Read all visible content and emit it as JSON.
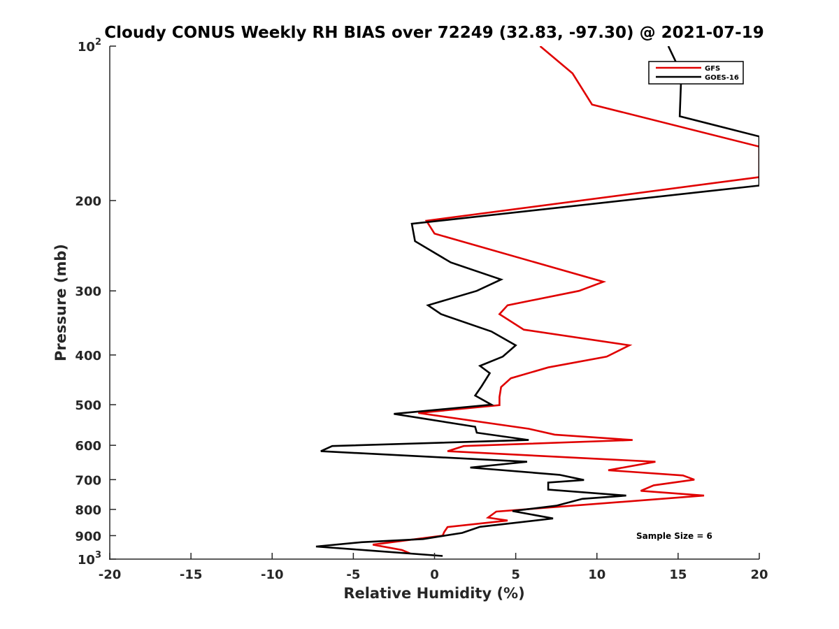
{
  "chart_data": {
    "type": "line",
    "title": "Cloudy CONUS Weekly RH BIAS over 72249 (32.83, -97.30) @ 2021-07-19",
    "xlabel": "Relative Humidity (%)",
    "ylabel": "Pressure (mb)",
    "xlim": [
      -20,
      20
    ],
    "ylim": [
      100,
      1000
    ],
    "yscale": "log",
    "y_reversed": true,
    "grid": false,
    "legend_position": "top-right",
    "x_ticks": [
      "-20",
      "-15",
      "-10",
      "-5",
      "0",
      "5",
      "10",
      "15",
      "20"
    ],
    "y_ticks": [
      {
        "value": 100,
        "base": "10",
        "exp": "2"
      },
      {
        "value": 200,
        "label": "200"
      },
      {
        "value": 300,
        "label": "300"
      },
      {
        "value": 400,
        "label": "400"
      },
      {
        "value": 500,
        "label": "500"
      },
      {
        "value": 600,
        "label": "600"
      },
      {
        "value": 700,
        "label": "700"
      },
      {
        "value": 800,
        "label": "800"
      },
      {
        "value": 900,
        "label": "900"
      },
      {
        "value": 1000,
        "base": "10",
        "exp": "3"
      }
    ],
    "annotation": "Sample Size = 6",
    "series": [
      {
        "name": "GFS",
        "color": "#e00000",
        "points": [
          [
            6.5,
            100
          ],
          [
            8.5,
            113
          ],
          [
            9.7,
            130
          ],
          [
            20,
            157
          ],
          [
            20,
            180
          ],
          [
            -0.5,
            219
          ],
          [
            0,
            232
          ],
          [
            10.4,
            288
          ],
          [
            8.9,
            300
          ],
          [
            4.5,
            320
          ],
          [
            4,
            333
          ],
          [
            5.5,
            357
          ],
          [
            12,
            383
          ],
          [
            10.6,
            403
          ],
          [
            7,
            423
          ],
          [
            4.7,
            444
          ],
          [
            4.1,
            462
          ],
          [
            4,
            483
          ],
          [
            4,
            501
          ],
          [
            -1,
            519
          ],
          [
            5.8,
            557
          ],
          [
            7.4,
            572
          ],
          [
            12.2,
            586
          ],
          [
            1.8,
            602
          ],
          [
            0.8,
            616
          ],
          [
            13.6,
            646
          ],
          [
            10.7,
            671
          ],
          [
            15.3,
            687
          ],
          [
            16,
            700
          ],
          [
            13.5,
            718
          ],
          [
            12.7,
            736
          ],
          [
            16.6,
            752
          ],
          [
            3.8,
            808
          ],
          [
            3.3,
            830
          ],
          [
            4.5,
            841
          ],
          [
            0.8,
            866
          ],
          [
            0.6,
            885
          ],
          [
            0.5,
            900
          ],
          [
            -3.8,
            937
          ],
          [
            -2,
            960
          ],
          [
            -1.5,
            975
          ]
        ]
      },
      {
        "name": "GOES-16",
        "color": "#000000",
        "points": [
          [
            14.4,
            100
          ],
          [
            15.2,
            113
          ],
          [
            15.1,
            137
          ],
          [
            20,
            150
          ],
          [
            20,
            187
          ],
          [
            -1.4,
            222
          ],
          [
            -1.2,
            240
          ],
          [
            1,
            264
          ],
          [
            4.1,
            285
          ],
          [
            2.6,
            300
          ],
          [
            -0.4,
            320
          ],
          [
            0.4,
            333
          ],
          [
            3.5,
            360
          ],
          [
            5,
            383
          ],
          [
            4.2,
            403
          ],
          [
            2.8,
            420
          ],
          [
            3.4,
            434
          ],
          [
            2.9,
            460
          ],
          [
            2.5,
            480
          ],
          [
            3.5,
            500
          ],
          [
            -2.5,
            521
          ],
          [
            2.5,
            552
          ],
          [
            2.6,
            567
          ],
          [
            5.8,
            586
          ],
          [
            -6.3,
            602
          ],
          [
            -7,
            616
          ],
          [
            5.7,
            646
          ],
          [
            2.2,
            663
          ],
          [
            7.7,
            685
          ],
          [
            9.2,
            701
          ],
          [
            7,
            709
          ],
          [
            7,
            732
          ],
          [
            11.8,
            752
          ],
          [
            9.1,
            763
          ],
          [
            7.5,
            787
          ],
          [
            4.8,
            806
          ],
          [
            7.3,
            833
          ],
          [
            2.8,
            865
          ],
          [
            1.7,
            889
          ],
          [
            -0.7,
            914
          ],
          [
            -4.5,
            927
          ],
          [
            -7.3,
            945
          ],
          [
            -4.2,
            961
          ],
          [
            0.5,
            986
          ]
        ]
      }
    ]
  }
}
